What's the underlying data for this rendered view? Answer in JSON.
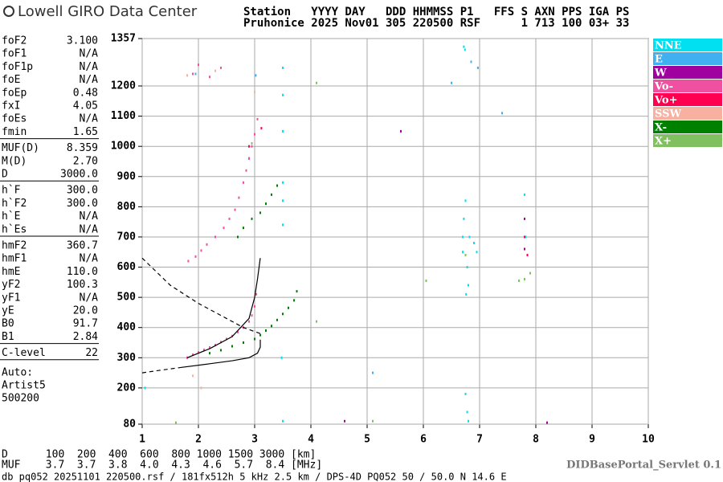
{
  "logo": "Lowell GIRO Data Center",
  "header": [
    "Station   YYYY DAY   DDD HHMMSS P1   FFS S AXN PPS IGA PS",
    "Pruhonice 2025 Nov01 305 220500 RSF      1 713 100 03+ 33"
  ],
  "parameters": [
    [
      {
        "name": "foF2",
        "value": "3.100"
      },
      {
        "name": "foF1",
        "value": "N/A"
      },
      {
        "name": "foF1p",
        "value": "N/A"
      },
      {
        "name": "foE",
        "value": "N/A"
      },
      {
        "name": "foEp",
        "value": "0.48"
      },
      {
        "name": "fxI",
        "value": "4.05"
      },
      {
        "name": "foEs",
        "value": "N/A"
      },
      {
        "name": "fmin",
        "value": "1.65"
      }
    ],
    [
      {
        "name": "MUF(D)",
        "value": "8.359"
      },
      {
        "name": "M(D)",
        "value": "2.70"
      },
      {
        "name": "D",
        "value": "3000.0"
      }
    ],
    [
      {
        "name": "h`F",
        "value": "300.0"
      },
      {
        "name": "h`F2",
        "value": "300.0"
      },
      {
        "name": "h`E",
        "value": "N/A"
      },
      {
        "name": "h`Es",
        "value": "N/A"
      }
    ],
    [
      {
        "name": "hmF2",
        "value": "360.7"
      },
      {
        "name": "hmF1",
        "value": "N/A"
      },
      {
        "name": "hmE",
        "value": "110.0"
      },
      {
        "name": "yF2",
        "value": "100.3"
      },
      {
        "name": "yF1",
        "value": "N/A"
      },
      {
        "name": "yE",
        "value": "20.0"
      },
      {
        "name": "B0",
        "value": "91.7"
      },
      {
        "name": "B1",
        "value": "2.84"
      }
    ],
    [
      {
        "name": "C-level",
        "value": "22"
      }
    ]
  ],
  "autoscaling": [
    "Auto:",
    "Artist5",
    "500200"
  ],
  "muf_table": [
    "D      100  200  400  600  800 1000 1500 3000 [km]",
    "MUF    3.7  3.7  3.8  4.0  4.3  4.6  5.7  8.4 [MHz]"
  ],
  "footer": "db pq052 20251101 220500.rsf / 181fx512h 5 kHz 2.5 km / DPS-4D PQ052 50 / 50.0 N 14.6 E",
  "servlet": "DIDBasePortal_Servlet 0.1",
  "chart_data": {
    "type": "scatter",
    "xlim": [
      1,
      10
    ],
    "ylim": [
      80,
      1357
    ],
    "xticks": [
      1,
      2,
      3,
      4,
      5,
      6,
      7,
      8,
      9,
      10
    ],
    "yticks": [
      80,
      200,
      300,
      400,
      500,
      600,
      700,
      800,
      900,
      1000,
      1100,
      1200,
      1357
    ],
    "grid": true,
    "series": [
      {
        "name": "NNE",
        "color": "#00e0f0",
        "x": [
          3.5,
          3.5,
          3.5,
          3.5,
          3.5,
          3.5,
          3.48,
          6.7,
          6.72,
          6.75,
          6.78,
          6.8,
          6.7,
          6.76,
          6.82,
          6.9,
          6.95,
          7.8,
          7.82,
          7.8,
          6.75,
          6.78,
          6.8,
          3.5,
          1.05,
          6.72,
          6.74
        ],
        "values": [
          740,
          820,
          880,
          1050,
          1170,
          1260,
          300,
          700,
          760,
          820,
          600,
          540,
          650,
          510,
          700,
          680,
          650,
          840,
          700,
          560,
          180,
          120,
          90,
          90,
          200,
          1330,
          1320
        ]
      },
      {
        "name": "E",
        "color": "#40b0f0",
        "x": [
          6.97,
          6.5,
          3.02,
          7.4,
          5.1,
          6.85,
          1.95
        ],
        "values": [
          1260,
          1210,
          1235,
          1110,
          250,
          1280,
          1240
        ]
      },
      {
        "name": "W",
        "color": "#a000a0",
        "x": [
          7.8,
          7.8,
          5.6,
          2.9,
          4.6,
          8.2
        ],
        "values": [
          760,
          660,
          1050,
          960,
          90,
          85
        ]
      },
      {
        "name": "Vo-",
        "color": "#f050a0",
        "x": [
          1.8,
          1.9,
          2.0,
          2.1,
          2.2,
          2.3,
          2.4,
          2.5,
          2.6,
          2.7,
          2.8,
          2.9,
          2.95,
          3.0,
          3.03,
          1.82,
          1.95,
          2.05,
          2.15,
          2.3,
          2.45,
          2.55,
          2.65,
          2.72,
          2.8,
          2.85,
          2.9,
          2.95,
          3.0,
          3.05,
          1.9,
          2.0,
          2.2,
          2.4
        ],
        "values": [
          300,
          310,
          318,
          326,
          334,
          342,
          352,
          362,
          372,
          385,
          400,
          420,
          440,
          470,
          510,
          620,
          635,
          655,
          675,
          700,
          730,
          760,
          790,
          830,
          880,
          920,
          960,
          1000,
          1040,
          1090,
          1240,
          1270,
          1230,
          1260
        ]
      },
      {
        "name": "Vo+",
        "color": "#ff0050",
        "x": [
          7.8,
          2.9,
          3.12,
          7.85
        ],
        "values": [
          700,
          1000,
          1060,
          640
        ]
      },
      {
        "name": "SSW",
        "color": "#f8b0a0",
        "x": [
          3.0,
          1.8,
          2.3,
          2.05,
          1.9
        ],
        "values": [
          1180,
          1235,
          1250,
          200,
          240
        ]
      },
      {
        "name": "X-",
        "color": "#008000",
        "x": [
          2.2,
          2.4,
          2.6,
          2.8,
          3.0,
          3.1,
          3.2,
          3.3,
          3.4,
          3.5,
          3.6,
          3.7,
          3.75,
          2.7,
          2.8,
          2.95,
          3.1,
          3.2,
          3.3,
          3.4
        ],
        "values": [
          315,
          325,
          338,
          350,
          362,
          375,
          390,
          405,
          425,
          445,
          465,
          490,
          520,
          700,
          730,
          760,
          780,
          810,
          840,
          870
        ]
      },
      {
        "name": "X+",
        "color": "#80c060",
        "x": [
          7.8,
          7.9,
          7.7,
          6.05,
          4.1,
          4.1,
          2.95,
          6.75,
          5.1,
          1.6
        ],
        "values": [
          560,
          580,
          555,
          555,
          1210,
          420,
          1010,
          640,
          90,
          85
        ]
      },
      {
        "type": "line",
        "dash": false,
        "color": "#000000",
        "x": [
          1.8,
          2.2,
          2.6,
          2.9,
          3.0,
          3.05,
          3.1
        ],
        "values": [
          300,
          330,
          370,
          430,
          500,
          560,
          630
        ]
      },
      {
        "type": "line",
        "dash": true,
        "color": "#000000",
        "x": [
          1,
          1.3,
          1.7
        ],
        "values": [
          250,
          258,
          268
        ]
      },
      {
        "type": "line",
        "dash": false,
        "color": "#000000",
        "x": [
          1.7,
          2.2,
          2.6,
          2.9,
          3.05,
          3.1,
          3.1
        ],
        "values": [
          268,
          280,
          290,
          300,
          315,
          335,
          360
        ]
      },
      {
        "type": "line",
        "dash": true,
        "color": "#000000",
        "x": [
          1,
          1.5,
          2,
          2.5,
          2.8,
          3.1
        ],
        "values": [
          630,
          540,
          480,
          430,
          400,
          380
        ]
      }
    ]
  }
}
